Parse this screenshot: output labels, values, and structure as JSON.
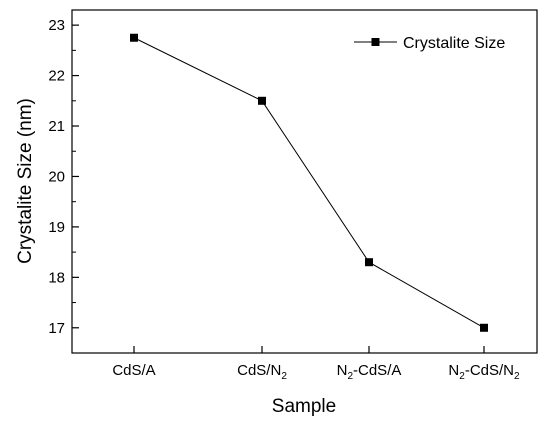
{
  "chart_data": {
    "type": "line",
    "categories": [
      {
        "label": "CdS/A",
        "parts": [
          {
            "t": "CdS/A"
          }
        ]
      },
      {
        "label": "CdS/N2",
        "parts": [
          {
            "t": "CdS/N"
          },
          {
            "t": "2",
            "sub": true
          }
        ]
      },
      {
        "label": "N2-CdS/A",
        "parts": [
          {
            "t": "N"
          },
          {
            "t": "2",
            "sub": true
          },
          {
            "t": "-CdS/A"
          }
        ]
      },
      {
        "label": "N2-CdS/N2",
        "parts": [
          {
            "t": "N"
          },
          {
            "t": "2",
            "sub": true
          },
          {
            "t": "-CdS/N"
          },
          {
            "t": "2",
            "sub": true
          }
        ]
      }
    ],
    "series": [
      {
        "name": "Crystalite Size",
        "values": [
          22.75,
          21.5,
          18.3,
          17.0
        ],
        "color": "#000000",
        "marker": "square"
      }
    ],
    "xlabel": "Sample",
    "ylabel": "Crystalite Size (nm)",
    "ylim": [
      16.5,
      23.3
    ],
    "yticks": [
      17,
      18,
      19,
      20,
      21,
      22,
      23
    ],
    "legend_position": "top-right",
    "grid": false
  }
}
